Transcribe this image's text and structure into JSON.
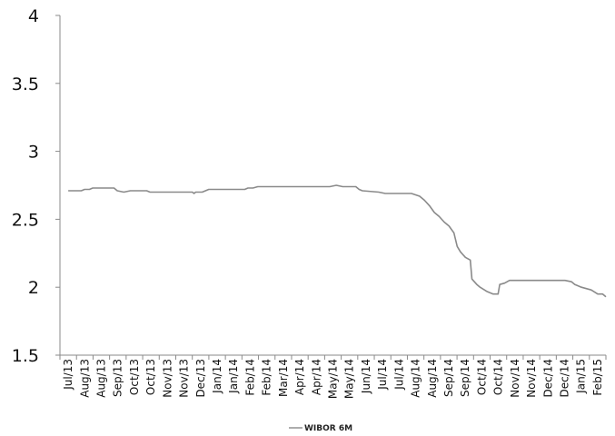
{
  "chart_data": {
    "type": "line",
    "title": "",
    "xlabel": "",
    "ylabel": "",
    "ylim": [
      1.5,
      4
    ],
    "yticks": [
      "1.5",
      "2",
      "2.5",
      "3",
      "3.5",
      "4"
    ],
    "x_tick_labels": [
      "Jul/13",
      "Aug/13",
      "Aug/13",
      "Sep/13",
      "Oct/13",
      "Oct/13",
      "Nov/13",
      "Nov/13",
      "Dec/13",
      "Jan/14",
      "Jan/14",
      "Feb/14",
      "Feb/14",
      "Mar/14",
      "Apr/14",
      "Apr/14",
      "May/14",
      "May/14",
      "Jun/14",
      "Jul/14",
      "Jul/14",
      "Aug/14",
      "Aug/14",
      "Sep/14",
      "Sep/14",
      "Oct/14",
      "Oct/14",
      "Nov/14",
      "Nov/14",
      "Dec/14",
      "Dec/14",
      "Jan/15",
      "Feb/15"
    ],
    "grid": false,
    "legend": "bottom-center",
    "color": "#8a8a8a",
    "series": [
      {
        "name": "WIBOR 6M",
        "points": [
          [
            0,
            2.71
          ],
          [
            0.8,
            2.71
          ],
          [
            1.0,
            2.72
          ],
          [
            1.3,
            2.72
          ],
          [
            1.5,
            2.73
          ],
          [
            2.8,
            2.73
          ],
          [
            3.0,
            2.71
          ],
          [
            3.4,
            2.7
          ],
          [
            3.8,
            2.71
          ],
          [
            4.8,
            2.71
          ],
          [
            5.0,
            2.7
          ],
          [
            7.6,
            2.7
          ],
          [
            7.7,
            2.69
          ],
          [
            7.8,
            2.7
          ],
          [
            8.2,
            2.7
          ],
          [
            8.4,
            2.71
          ],
          [
            8.6,
            2.72
          ],
          [
            10.8,
            2.72
          ],
          [
            11.0,
            2.73
          ],
          [
            11.3,
            2.73
          ],
          [
            11.6,
            2.74
          ],
          [
            16.0,
            2.74
          ],
          [
            16.4,
            2.75
          ],
          [
            16.8,
            2.74
          ],
          [
            17.6,
            2.74
          ],
          [
            17.8,
            2.72
          ],
          [
            18.0,
            2.71
          ],
          [
            19.0,
            2.7
          ],
          [
            19.4,
            2.69
          ],
          [
            21.0,
            2.69
          ],
          [
            21.5,
            2.67
          ],
          [
            21.8,
            2.64
          ],
          [
            22.1,
            2.6
          ],
          [
            22.4,
            2.55
          ],
          [
            22.7,
            2.52
          ],
          [
            23.0,
            2.48
          ],
          [
            23.3,
            2.45
          ],
          [
            23.6,
            2.4
          ],
          [
            23.8,
            2.3
          ],
          [
            24.0,
            2.26
          ],
          [
            24.3,
            2.22
          ],
          [
            24.6,
            2.2
          ],
          [
            24.7,
            2.06
          ],
          [
            25.0,
            2.02
          ],
          [
            25.2,
            2.0
          ],
          [
            25.6,
            1.97
          ],
          [
            26.0,
            1.95
          ],
          [
            26.3,
            1.95
          ],
          [
            26.4,
            2.02
          ],
          [
            26.7,
            2.03
          ],
          [
            27.0,
            2.05
          ],
          [
            30.4,
            2.05
          ],
          [
            30.8,
            2.04
          ],
          [
            31.0,
            2.02
          ],
          [
            31.4,
            2.0
          ],
          [
            32.0,
            1.98
          ],
          [
            32.4,
            1.95
          ],
          [
            32.7,
            1.95
          ],
          [
            32.9,
            1.93
          ]
        ]
      }
    ]
  }
}
